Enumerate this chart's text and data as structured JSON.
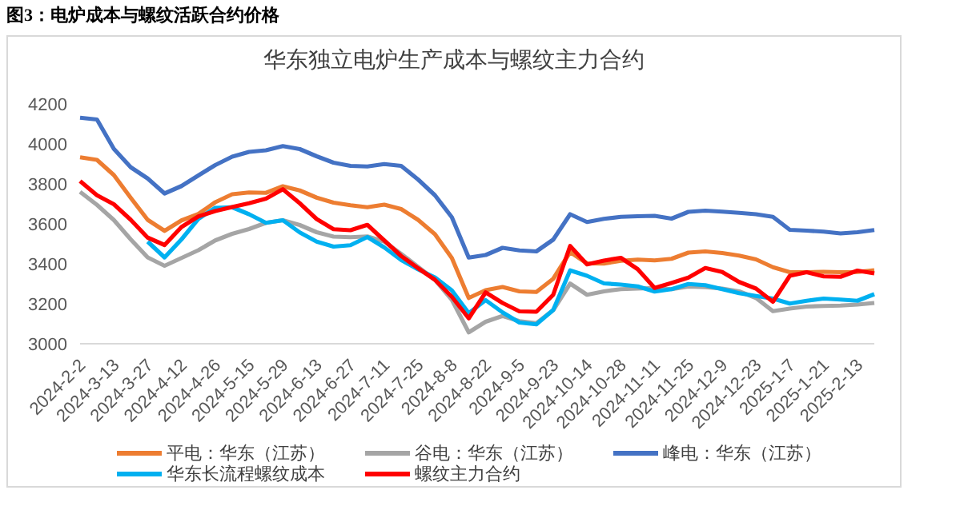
{
  "chart_data": {
    "type": "line",
    "title": "图3：电炉成本与螺纹活跃合约价格",
    "subtitle": "华东独立电炉生产成本与螺纹主力合约",
    "categories": [
      "2024-2-2",
      null,
      "2024-3-13",
      null,
      "2024-3-27",
      null,
      "2024-4-12",
      null,
      "2024-4-26",
      null,
      "2024-5-15",
      null,
      "2024-5-29",
      null,
      "2024-6-13",
      null,
      "2024-6-27",
      null,
      "2024-7-11",
      null,
      "2024-7-25",
      null,
      "2024-8-8",
      null,
      "2024-8-22",
      null,
      "2024-9-5",
      null,
      "2024-9-23",
      null,
      "2024-10-14",
      null,
      "2024-10-28",
      null,
      "2024-11-11",
      null,
      "2024-11-25",
      null,
      "2024-12-9",
      null,
      "2024-12-23",
      null,
      "2025-1-7",
      null,
      "2025-1-21",
      null,
      "2025-2-13",
      null
    ],
    "series": [
      {
        "name": "平电：华东（江苏）",
        "color": "#ed7d31",
        "values": [
          3933,
          3920,
          3844,
          3730,
          3620,
          3565,
          3617,
          3649,
          3708,
          3748,
          3757,
          3755,
          3788,
          3767,
          3731,
          3706,
          3693,
          3683,
          3696,
          3674,
          3620,
          3548,
          3429,
          3229,
          3268,
          3284,
          3262,
          3259,
          3325,
          3459,
          3402,
          3401,
          3415,
          3421,
          3417,
          3425,
          3456,
          3462,
          3454,
          3441,
          3422,
          3383,
          3358,
          3358,
          3360,
          3358,
          3359,
          3368
        ]
      },
      {
        "name": "谷电：华东（江苏）",
        "color": "#a5a5a5",
        "values": [
          3760,
          3695,
          3619,
          3522,
          3432,
          3390,
          3429,
          3468,
          3517,
          3550,
          3574,
          3605,
          3618,
          3594,
          3558,
          3536,
          3533,
          3537,
          3511,
          3450,
          3385,
          3320,
          3220,
          3057,
          3110,
          3139,
          3113,
          3103,
          3168,
          3301,
          3245,
          3262,
          3273,
          3276,
          3279,
          3273,
          3286,
          3283,
          3276,
          3262,
          3229,
          3163,
          3176,
          3186,
          3189,
          3191,
          3196,
          3204
        ]
      },
      {
        "name": "峰电：华东（江苏）",
        "color": "#4472c4",
        "values": [
          4131,
          4122,
          3975,
          3883,
          3827,
          3752,
          3789,
          3842,
          3894,
          3936,
          3960,
          3968,
          3989,
          3974,
          3938,
          3906,
          3890,
          3887,
          3899,
          3890,
          3822,
          3743,
          3633,
          3431,
          3444,
          3480,
          3467,
          3462,
          3521,
          3648,
          3609,
          3625,
          3635,
          3638,
          3640,
          3626,
          3660,
          3666,
          3661,
          3655,
          3648,
          3635,
          3570,
          3566,
          3561,
          3552,
          3558,
          3569
        ]
      },
      {
        "name": "华东长流程螺纹成本",
        "color": "#00b0f0",
        "values": [
          null,
          null,
          null,
          null,
          3511,
          3432,
          3522,
          3625,
          3680,
          3683,
          3648,
          3605,
          3618,
          3557,
          3511,
          3486,
          3493,
          3534,
          3482,
          3419,
          3372,
          3332,
          3267,
          3153,
          3218,
          3157,
          3106,
          3097,
          3169,
          3367,
          3340,
          3302,
          3296,
          3287,
          3261,
          3273,
          3299,
          3293,
          3273,
          3253,
          3239,
          3226,
          3201,
          3215,
          3226,
          3221,
          3215,
          3248
        ]
      },
      {
        "name": "螺纹主力合约",
        "color": "#ff0000",
        "values": [
          3814,
          3743,
          3698,
          3620,
          3531,
          3494,
          3584,
          3637,
          3664,
          3684,
          3703,
          3726,
          3773,
          3703,
          3624,
          3573,
          3568,
          3595,
          3517,
          3439,
          3378,
          3320,
          3235,
          3127,
          3257,
          3204,
          3162,
          3160,
          3245,
          3489,
          3397,
          3416,
          3430,
          3373,
          3279,
          3304,
          3331,
          3379,
          3359,
          3309,
          3276,
          3210,
          3340,
          3358,
          3337,
          3335,
          3366,
          3352
        ]
      }
    ],
    "ylim": [
      3000,
      4200
    ],
    "yticks": [
      3000,
      3200,
      3400,
      3600,
      3800,
      4000,
      4200
    ],
    "grid": false,
    "legend": "bottom",
    "marker": "none",
    "line_style": "solid"
  }
}
